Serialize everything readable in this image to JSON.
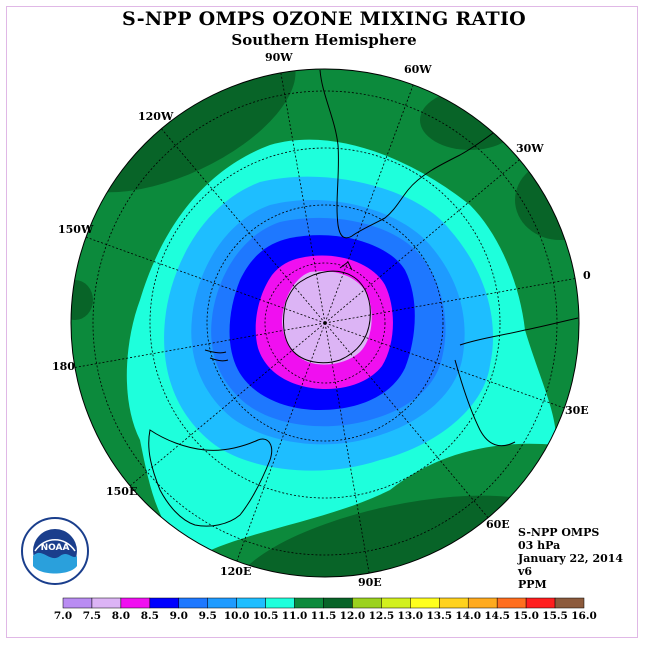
{
  "title": "S-NPP OMPS OZONE MIXING RATIO",
  "subtitle": "Southern Hemisphere",
  "longitude_labels": [
    "90W",
    "60W",
    "30W",
    "0",
    "30E",
    "60E",
    "90E",
    "120E",
    "150E",
    "180",
    "150W",
    "120W"
  ],
  "info": {
    "instrument": "S-NPP OMPS",
    "level": "03 hPa",
    "date": "January 22, 2014",
    "version": "v6",
    "units": "PPM"
  },
  "logo_text": "NOAA",
  "colorbar": {
    "ticks": [
      "7.0",
      "7.5",
      "8.0",
      "8.5",
      "9.0",
      "9.5",
      "10.0",
      "10.5",
      "11.0",
      "11.5",
      "12.0",
      "12.5",
      "13.0",
      "13.5",
      "14.0",
      "14.5",
      "15.0",
      "15.5",
      "16.0"
    ],
    "colors": [
      "#b98cf2",
      "#dcb4f5",
      "#f00ff0",
      "#0000ff",
      "#1e78ff",
      "#1e9bff",
      "#1ebeff",
      "#1effdc",
      "#0c8a3c",
      "#086428",
      "#9bd21e",
      "#d2f01e",
      "#ffff1e",
      "#ffd21e",
      "#ffaa1e",
      "#ff6e1e",
      "#ff1e1e",
      "#8c5a3c"
    ]
  },
  "colors": {
    "outer_green": "#0c8a3c",
    "dark_green": "#086428",
    "aqua": "#1effdc",
    "light_blue": "#1ebeff",
    "blue_1": "#1e9bff",
    "blue_2": "#1e78ff",
    "deep_blue": "#0000ff",
    "magenta": "#f00ff0",
    "lilac": "#dcb4f5"
  }
}
